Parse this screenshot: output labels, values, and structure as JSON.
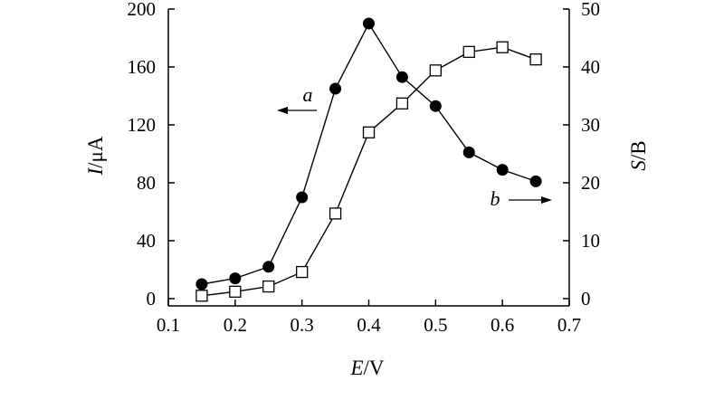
{
  "chart_data": {
    "type": "line",
    "xlabel_italic": "E",
    "xlabel_unit": "/V",
    "ylabel_left_italic": "I",
    "ylabel_left_unit": "/μA",
    "ylabel_right_italic": "S",
    "ylabel_right_unit": "/B",
    "xlim": [
      0.1,
      0.7
    ],
    "ylim_left": [
      -5,
      200
    ],
    "ylim_right": [
      -1.25,
      50
    ],
    "x_ticks": [
      "0.1",
      "0.2",
      "0.3",
      "0.4",
      "0.5",
      "0.6",
      "0.7"
    ],
    "y_left_ticks": [
      "0",
      "40",
      "80",
      "120",
      "160",
      "200"
    ],
    "y_right_ticks": [
      "0",
      "10",
      "20",
      "30",
      "40",
      "50"
    ],
    "grid": false,
    "series": [
      {
        "name": "a",
        "axis": "left",
        "marker": "filled-circle",
        "x": [
          0.15,
          0.2,
          0.25,
          0.3,
          0.35,
          0.4,
          0.45,
          0.5,
          0.55,
          0.6,
          0.65
        ],
        "y": [
          10,
          14,
          22,
          70,
          145,
          190,
          153,
          133,
          101,
          89,
          81
        ]
      },
      {
        "name": "b",
        "axis": "right",
        "marker": "open-square",
        "x": [
          0.15,
          0.2,
          0.25,
          0.3,
          0.35,
          0.4,
          0.45,
          0.5,
          0.55,
          0.6,
          0.65
        ],
        "y": [
          0.5,
          1.2,
          2.1,
          4.6,
          14.7,
          28.7,
          33.7,
          39.4,
          42.6,
          43.4,
          41.3
        ]
      }
    ],
    "annotations": [
      {
        "text": "a",
        "arrow": "left",
        "axis": "left"
      },
      {
        "text": "b",
        "arrow": "right",
        "axis": "right"
      }
    ]
  }
}
